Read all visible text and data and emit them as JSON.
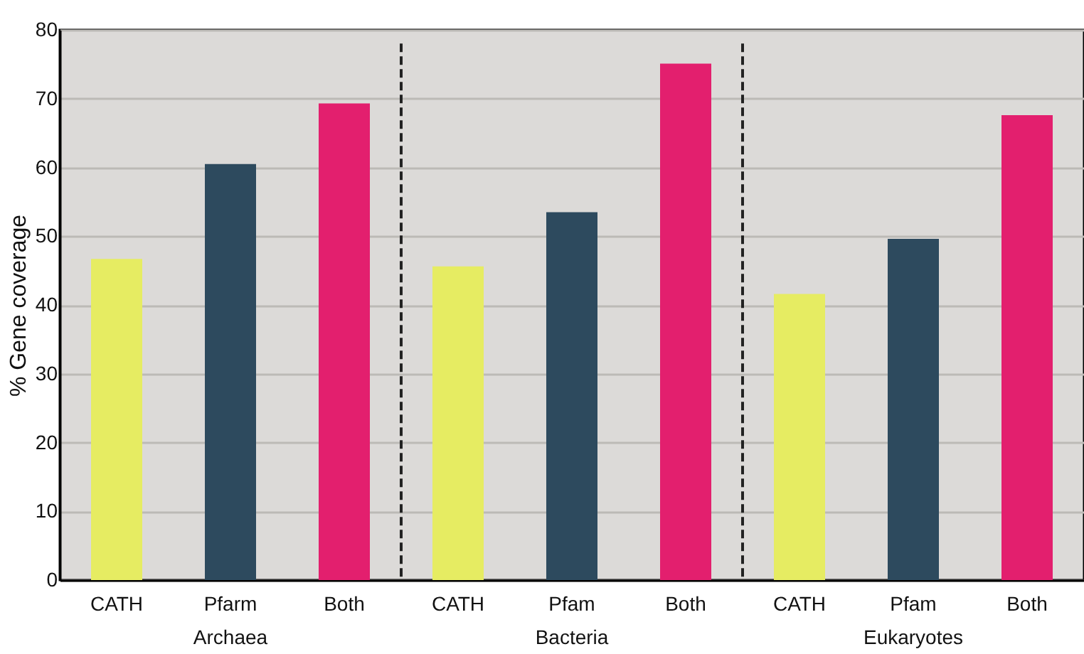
{
  "chart_data": {
    "type": "bar",
    "ylabel": "% Gene coverage",
    "categories": [
      "CATH",
      "Pfarm",
      "Both",
      "CATH",
      "Pfam",
      "Both",
      "CATH",
      "Pfam",
      "Both"
    ],
    "values": [
      46.7,
      60.5,
      69.3,
      45.6,
      53.5,
      75.1,
      41.6,
      49.6,
      67.6
    ],
    "colors": [
      "#e6ec62",
      "#2d4a5e",
      "#e31f6e",
      "#e6ec62",
      "#2d4a5e",
      "#e31f6e",
      "#e6ec62",
      "#2d4a5e",
      "#e31f6e"
    ],
    "annotations": [
      "Archaea",
      "Bacteria",
      "Eukaryotes"
    ],
    "ylim": [
      0,
      80
    ],
    "yticks": [
      0,
      10,
      20,
      30,
      40,
      50,
      60,
      70,
      80
    ],
    "grid": "y"
  }
}
